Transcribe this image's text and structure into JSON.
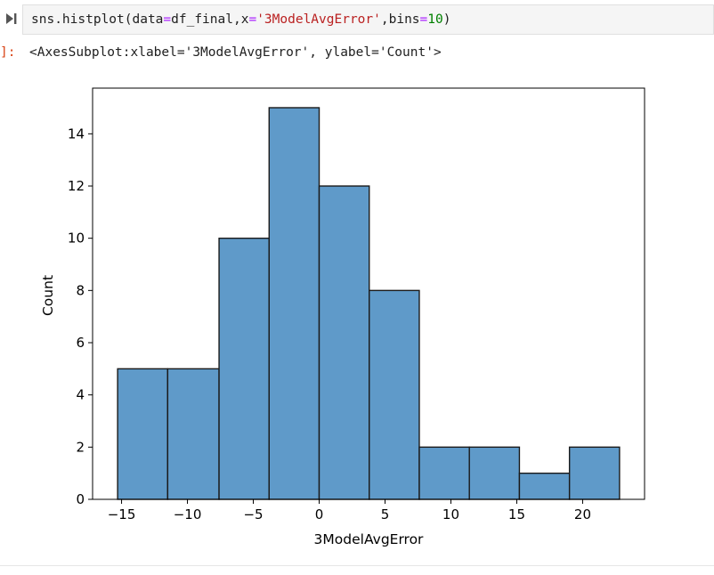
{
  "cell": {
    "code_parts": {
      "p1": "sns.histplot(data",
      "eq1": "=",
      "p2": "df_final,x",
      "eq2": "=",
      "str": "'3ModelAvgError'",
      "p3": ",bins",
      "eq3": "=",
      "num": "10",
      "p4": ")"
    },
    "run_icon": "run-cell-icon"
  },
  "output": {
    "prompt": "]:",
    "text": "<AxesSubplot:xlabel='3ModelAvgError', ylabel='Count'>"
  },
  "colors": {
    "bar_fill": "#5f9ac9",
    "bar_edge": "#1a1a1a"
  },
  "chart_data": {
    "type": "bar",
    "title": "",
    "xlabel": "3ModelAvgError",
    "ylabel": "Count",
    "bin_edges": [
      -15.3,
      -11.5,
      -7.6,
      -3.8,
      0.0,
      3.8,
      7.6,
      11.4,
      15.2,
      19.0,
      22.8
    ],
    "values": [
      5,
      5,
      10,
      15,
      12,
      8,
      2,
      2,
      1,
      2
    ],
    "xlim": [
      -17.2,
      24.7
    ],
    "ylim": [
      0,
      15.75
    ],
    "xticks": [
      -15,
      -10,
      -5,
      0,
      5,
      10,
      15,
      20
    ],
    "xtick_labels": [
      "−15",
      "−10",
      "−5",
      "0",
      "5",
      "10",
      "15",
      "20"
    ],
    "yticks": [
      0,
      2,
      4,
      6,
      8,
      10,
      12,
      14
    ],
    "ytick_labels": [
      "0",
      "2",
      "4",
      "6",
      "8",
      "10",
      "12",
      "14"
    ],
    "grid": false
  }
}
